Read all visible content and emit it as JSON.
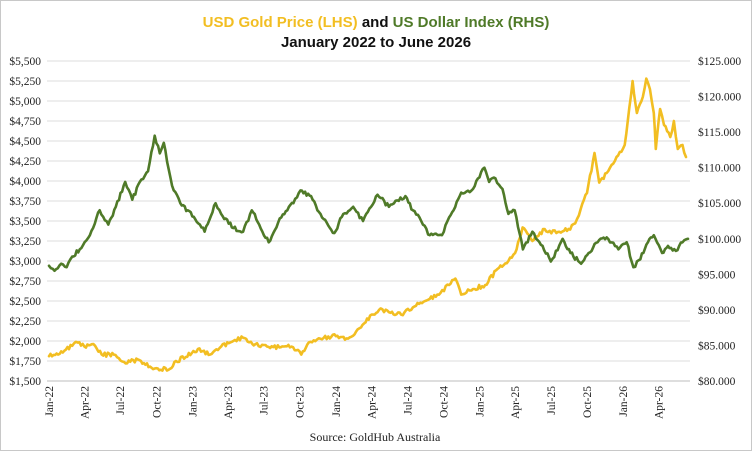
{
  "chart_data": {
    "type": "line",
    "title": {
      "part1": "USD Gold Price (LHS)",
      "part2": " and ",
      "part3": "US Dollar Index (RHS)",
      "line2": "January 2022 to June 2026"
    },
    "source": "Source: GoldHub Australia",
    "x_labels": [
      "Jan-22",
      "Apr-22",
      "Jul-22",
      "Oct-22",
      "Jan-23",
      "Apr-23",
      "Jul-23",
      "Oct-23",
      "Jan-24",
      "Apr-24",
      "Jul-24",
      "Oct-24",
      "Jan-25",
      "Apr-25",
      "Jul-25",
      "Oct-25",
      "Jan-26",
      "Apr-26"
    ],
    "y_left": {
      "ticks": [
        "$1,500",
        "$1,750",
        "$2,000",
        "$2,250",
        "$2,500",
        "$2,750",
        "$3,000",
        "$3,250",
        "$3,500",
        "$3,750",
        "$4,000",
        "$4,250",
        "$4,500",
        "$4,750",
        "$5,000",
        "$5,250",
        "$5,500"
      ],
      "range": [
        1500,
        5500
      ]
    },
    "y_right": {
      "ticks": [
        "$80.000",
        "$85.000",
        "$90.000",
        "$95.000",
        "$100.000",
        "$105.000",
        "$110.000",
        "$115.000",
        "$120.000",
        "$125.000"
      ],
      "range": [
        80,
        125
      ]
    },
    "gridlines": true,
    "colors": {
      "gold": "#f2be22",
      "dxy": "#4f7a28",
      "grid": "#dedede"
    },
    "series": [
      {
        "name": "USD Gold Price (LHS)",
        "axis": "left",
        "color": "#f2be22",
        "points": [
          [
            "2022-01-01",
            1810
          ],
          [
            "2022-02-01",
            1870
          ],
          [
            "2022-03-01",
            1940
          ],
          [
            "2022-03-15",
            1980
          ],
          [
            "2022-04-01",
            1930
          ],
          [
            "2022-04-20",
            1960
          ],
          [
            "2022-05-15",
            1830
          ],
          [
            "2022-06-15",
            1830
          ],
          [
            "2022-07-15",
            1720
          ],
          [
            "2022-08-15",
            1770
          ],
          [
            "2022-09-15",
            1680
          ],
          [
            "2022-10-01",
            1660
          ],
          [
            "2022-11-01",
            1640
          ],
          [
            "2022-11-20",
            1750
          ],
          [
            "2022-12-15",
            1800
          ],
          [
            "2023-01-15",
            1900
          ],
          [
            "2023-02-15",
            1830
          ],
          [
            "2023-03-15",
            1930
          ],
          [
            "2023-04-15",
            2000
          ],
          [
            "2023-05-10",
            2040
          ],
          [
            "2023-06-10",
            1960
          ],
          [
            "2023-07-10",
            1930
          ],
          [
            "2023-08-10",
            1920
          ],
          [
            "2023-09-10",
            1930
          ],
          [
            "2023-10-05",
            1830
          ],
          [
            "2023-10-28",
            1990
          ],
          [
            "2023-12-01",
            2040
          ],
          [
            "2024-01-01",
            2060
          ],
          [
            "2024-02-01",
            2030
          ],
          [
            "2024-03-01",
            2160
          ],
          [
            "2024-04-01",
            2330
          ],
          [
            "2024-04-20",
            2390
          ],
          [
            "2024-05-15",
            2360
          ],
          [
            "2024-06-15",
            2330
          ],
          [
            "2024-07-15",
            2420
          ],
          [
            "2024-08-15",
            2500
          ],
          [
            "2024-09-15",
            2580
          ],
          [
            "2024-10-15",
            2700
          ],
          [
            "2024-10-31",
            2780
          ],
          [
            "2024-11-15",
            2580
          ],
          [
            "2024-12-15",
            2650
          ],
          [
            "2025-01-15",
            2700
          ],
          [
            "2025-02-15",
            2900
          ],
          [
            "2025-03-15",
            3000
          ],
          [
            "2025-04-01",
            3100
          ],
          [
            "2025-04-20",
            3420
          ],
          [
            "2025-05-15",
            3250
          ],
          [
            "2025-06-15",
            3400
          ],
          [
            "2025-07-15",
            3350
          ],
          [
            "2025-08-15",
            3400
          ],
          [
            "2025-09-01",
            3470
          ],
          [
            "2025-09-15",
            3650
          ],
          [
            "2025-10-01",
            3850
          ],
          [
            "2025-10-20",
            4350
          ],
          [
            "2025-11-01",
            3980
          ],
          [
            "2025-11-20",
            4100
          ],
          [
            "2025-12-15",
            4300
          ],
          [
            "2026-01-05",
            4450
          ],
          [
            "2026-01-25",
            5250
          ],
          [
            "2026-02-05",
            4850
          ],
          [
            "2026-02-20",
            5050
          ],
          [
            "2026-03-01",
            5280
          ],
          [
            "2026-03-10",
            5150
          ],
          [
            "2026-03-20",
            4850
          ],
          [
            "2026-03-25",
            4400
          ],
          [
            "2026-04-05",
            4900
          ],
          [
            "2026-04-15",
            4700
          ],
          [
            "2026-05-01",
            4550
          ],
          [
            "2026-05-10",
            4750
          ],
          [
            "2026-05-20",
            4400
          ],
          [
            "2026-06-01",
            4450
          ],
          [
            "2026-06-10",
            4300
          ]
        ]
      },
      {
        "name": "US Dollar Index (RHS)",
        "axis": "right",
        "color": "#4f7a28",
        "points": [
          [
            "2022-01-01",
            96.2
          ],
          [
            "2022-01-15",
            95.5
          ],
          [
            "2022-02-01",
            96.5
          ],
          [
            "2022-02-15",
            96.0
          ],
          [
            "2022-03-01",
            97.5
          ],
          [
            "2022-03-20",
            98.5
          ],
          [
            "2022-04-15",
            100.5
          ],
          [
            "2022-05-10",
            104.0
          ],
          [
            "2022-06-01",
            102.0
          ],
          [
            "2022-06-20",
            104.5
          ],
          [
            "2022-07-14",
            108.0
          ],
          [
            "2022-08-01",
            105.5
          ],
          [
            "2022-08-20",
            108.0
          ],
          [
            "2022-09-10",
            109.5
          ],
          [
            "2022-09-27",
            114.5
          ],
          [
            "2022-10-10",
            112.0
          ],
          [
            "2022-10-20",
            113.5
          ],
          [
            "2022-11-10",
            107.5
          ],
          [
            "2022-12-01",
            105.0
          ],
          [
            "2022-12-20",
            104.0
          ],
          [
            "2023-01-20",
            102.0
          ],
          [
            "2023-02-01",
            101.0
          ],
          [
            "2023-03-01",
            105.0
          ],
          [
            "2023-03-15",
            103.5
          ],
          [
            "2023-04-15",
            101.5
          ],
          [
            "2023-05-10",
            101.0
          ],
          [
            "2023-06-01",
            104.0
          ],
          [
            "2023-06-20",
            102.0
          ],
          [
            "2023-07-14",
            99.5
          ],
          [
            "2023-08-15",
            103.0
          ],
          [
            "2023-09-15",
            105.0
          ],
          [
            "2023-10-03",
            106.8
          ],
          [
            "2023-10-30",
            106.0
          ],
          [
            "2023-11-15",
            104.0
          ],
          [
            "2023-12-28",
            100.8
          ],
          [
            "2024-01-20",
            103.5
          ],
          [
            "2024-02-14",
            104.5
          ],
          [
            "2024-03-10",
            102.5
          ],
          [
            "2024-04-16",
            106.2
          ],
          [
            "2024-05-15",
            104.5
          ],
          [
            "2024-06-26",
            106.0
          ],
          [
            "2024-07-15",
            104.0
          ],
          [
            "2024-08-05",
            102.5
          ],
          [
            "2024-08-27",
            100.5
          ],
          [
            "2024-09-27",
            100.5
          ],
          [
            "2024-10-15",
            103.0
          ],
          [
            "2024-11-15",
            106.5
          ],
          [
            "2024-12-15",
            107.0
          ],
          [
            "2025-01-13",
            110.0
          ],
          [
            "2025-01-25",
            108.0
          ],
          [
            "2025-02-10",
            108.5
          ],
          [
            "2025-02-28",
            107.0
          ],
          [
            "2025-03-15",
            103.5
          ],
          [
            "2025-03-31",
            104.0
          ],
          [
            "2025-04-21",
            98.5
          ],
          [
            "2025-05-15",
            101.0
          ],
          [
            "2025-06-10",
            99.0
          ],
          [
            "2025-07-01",
            96.8
          ],
          [
            "2025-07-31",
            100.0
          ],
          [
            "2025-08-20",
            98.0
          ],
          [
            "2025-09-16",
            96.5
          ],
          [
            "2025-10-05",
            98.0
          ],
          [
            "2025-10-28",
            99.5
          ],
          [
            "2025-11-20",
            100.2
          ],
          [
            "2025-12-20",
            98.5
          ],
          [
            "2026-01-10",
            99.5
          ],
          [
            "2026-01-27",
            96.0
          ],
          [
            "2026-02-10",
            97.0
          ],
          [
            "2026-03-05",
            99.5
          ],
          [
            "2026-03-20",
            100.5
          ],
          [
            "2026-04-10",
            98.0
          ],
          [
            "2026-04-25",
            99.0
          ],
          [
            "2026-05-15",
            98.3
          ],
          [
            "2026-06-01",
            99.5
          ],
          [
            "2026-06-15",
            100.0
          ]
        ]
      }
    ]
  }
}
